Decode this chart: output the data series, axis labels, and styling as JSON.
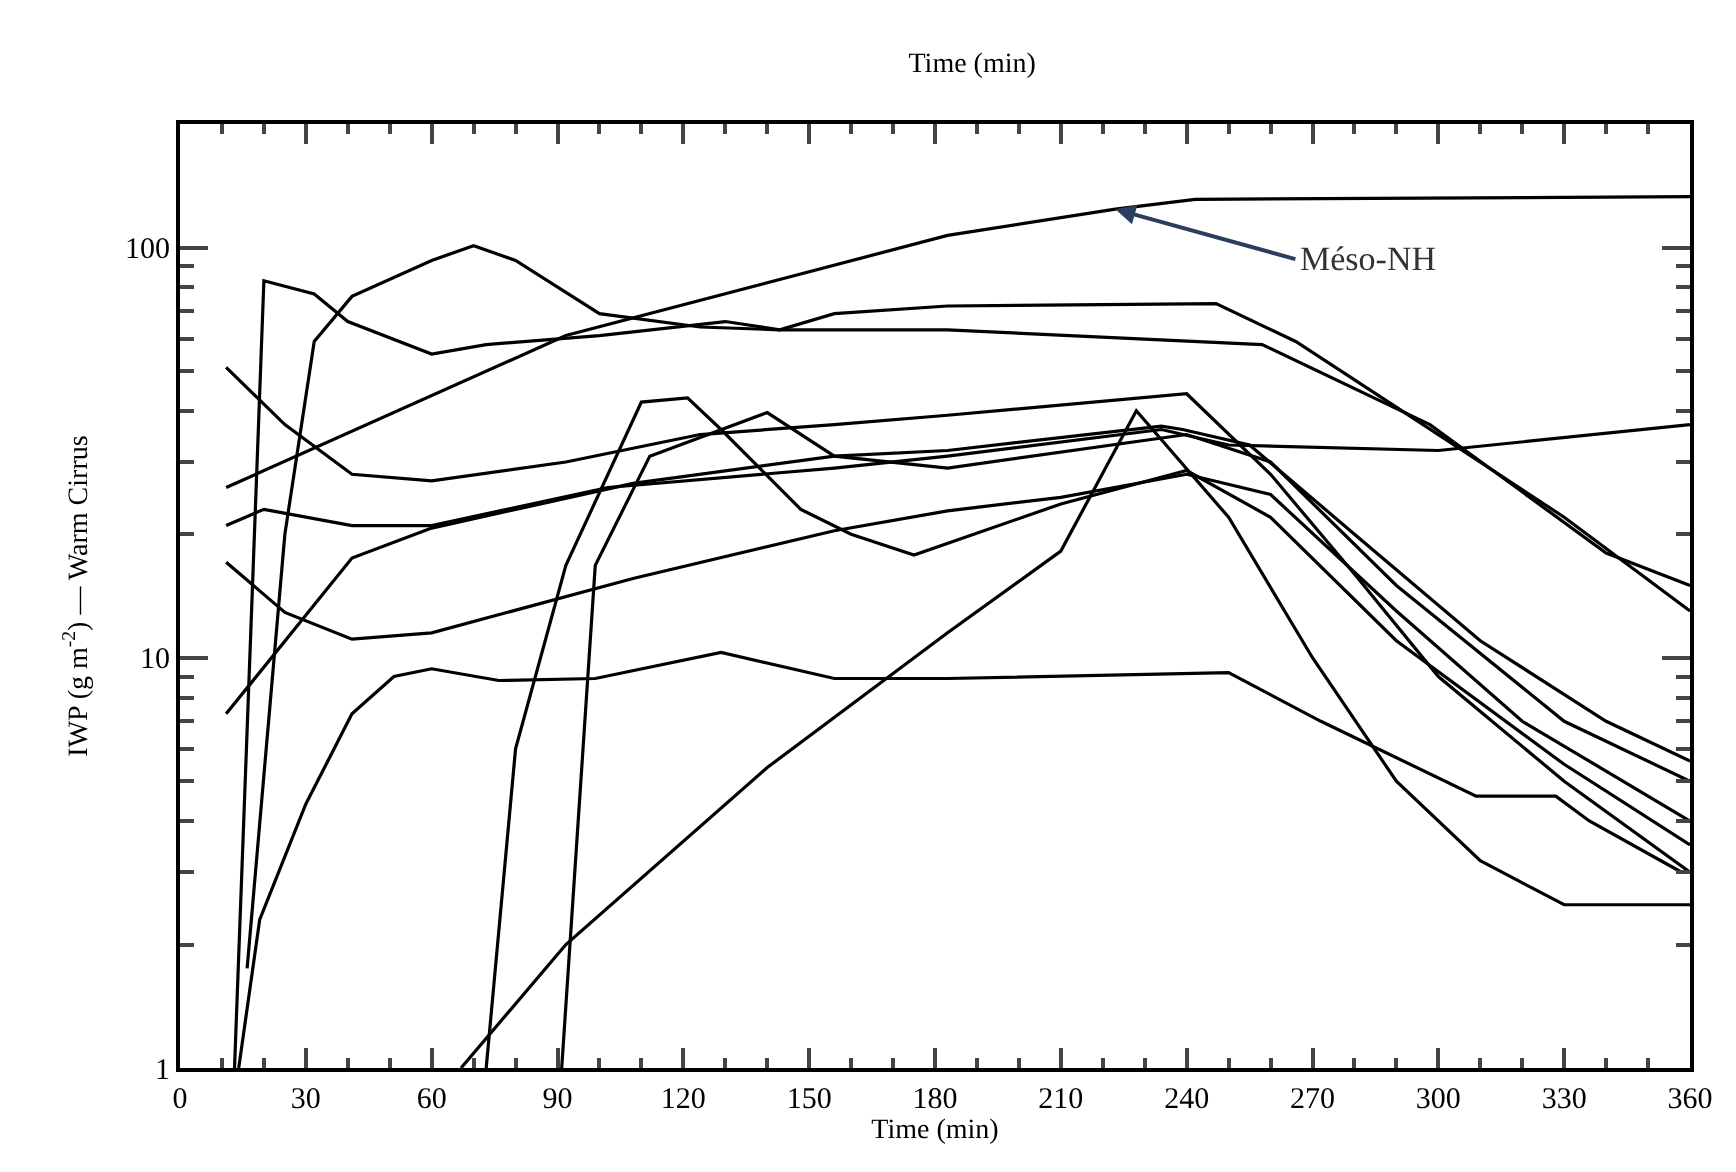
{
  "chart_data": {
    "type": "line",
    "title": "Time (min)",
    "xlabel": "Time (min)",
    "ylabel": "IWP (g m$^{-2}$) — Warm Cirrus",
    "xlim": [
      0,
      360
    ],
    "xticks": [
      0,
      30,
      60,
      90,
      120,
      150,
      180,
      210,
      240,
      270,
      300,
      330,
      360
    ],
    "ylim": [
      1,
      200
    ],
    "yticks": [
      1,
      10,
      100
    ],
    "log": true,
    "marker": "none",
    "line_style": "solid",
    "annotations": [
      {
        "text": "Méso-NH",
        "x": 223,
        "y": 124
      }
    ],
    "series": [
      {
        "color": "#000000",
        "x": [
          11,
          92,
          183,
          223,
          242,
          360
        ],
        "values": [
          26,
          61,
          107,
          124,
          131,
          133
        ]
      },
      {
        "color": "#000000",
        "x": [
          13,
          20,
          32,
          40,
          60,
          73,
          100,
          130,
          143,
          156,
          183,
          247,
          266,
          300,
          330,
          360
        ],
        "values": [
          1,
          83,
          77,
          66,
          55,
          58,
          61,
          66,
          63,
          69,
          72,
          73,
          59,
          35,
          22,
          13
        ]
      },
      {
        "color": "#000000",
        "x": [
          16,
          25,
          32,
          41,
          60,
          70,
          80,
          100,
          124,
          143,
          183,
          258,
          298,
          340,
          360
        ],
        "values": [
          1.75,
          20,
          59,
          76,
          93,
          101,
          93,
          69,
          64,
          63,
          63,
          58,
          37,
          18,
          15
        ]
      },
      {
        "color": "#000000",
        "x": [
          11,
          25,
          41,
          60,
          92,
          124,
          156,
          183,
          240,
          260,
          280,
          300,
          330,
          360
        ],
        "values": [
          51,
          37,
          28,
          27,
          30,
          35,
          37,
          39,
          44,
          28,
          16,
          9,
          5,
          3
        ]
      },
      {
        "color": "#000000",
        "x": [
          11,
          20,
          41,
          60,
          102,
          156,
          183,
          234,
          250,
          300,
          360
        ],
        "values": [
          21,
          23,
          21,
          21,
          26,
          29,
          31,
          36,
          33,
          32,
          37
        ]
      },
      {
        "color": "#000000",
        "x": [
          11,
          41,
          60,
          108,
          156,
          183,
          234,
          239,
          255,
          280,
          310,
          340,
          360
        ],
        "values": [
          7.3,
          17.5,
          20.7,
          26.6,
          31,
          32,
          36.7,
          36,
          33,
          20,
          11,
          7,
          5.6
        ]
      },
      {
        "color": "#000000",
        "x": [
          11,
          25,
          41,
          60,
          108,
          156,
          183,
          210,
          240,
          260,
          290,
          320,
          360
        ],
        "values": [
          17.1,
          12.9,
          11.1,
          11.5,
          15.6,
          20.4,
          22.8,
          24.6,
          28,
          25,
          13,
          7,
          4
        ]
      },
      {
        "color": "#000000",
        "x": [
          73,
          80,
          92,
          110,
          121,
          129,
          148,
          160,
          175,
          210,
          240,
          260,
          290,
          330,
          360
        ],
        "values": [
          1,
          6,
          16.8,
          42,
          43,
          36,
          23,
          20,
          17.8,
          23.7,
          28.6,
          22,
          11,
          5.5,
          3.5
        ]
      },
      {
        "color": "#000000",
        "x": [
          91,
          99,
          112,
          140,
          156,
          183,
          240,
          260,
          290,
          330,
          360
        ],
        "values": [
          1,
          16.8,
          31,
          39.6,
          31,
          29,
          35,
          30,
          15,
          7,
          5
        ]
      },
      {
        "color": "#000000",
        "x": [
          67,
          92,
          140,
          183,
          210,
          228,
          250,
          270,
          290,
          310,
          330,
          360
        ],
        "values": [
          1,
          2,
          5.4,
          11.5,
          18.2,
          40,
          22,
          10,
          5,
          3.2,
          2.5,
          2.5
        ]
      },
      {
        "color": "#000000",
        "x": [
          14,
          19,
          30,
          41,
          51,
          60,
          76,
          99,
          129,
          156,
          183,
          250,
          272,
          309,
          328,
          336,
          358
        ],
        "values": [
          1,
          2.3,
          4.4,
          7.3,
          9,
          9.4,
          8.8,
          8.9,
          10.3,
          8.9,
          8.9,
          9.2,
          7,
          4.6,
          4.6,
          4,
          3
        ]
      }
    ]
  }
}
